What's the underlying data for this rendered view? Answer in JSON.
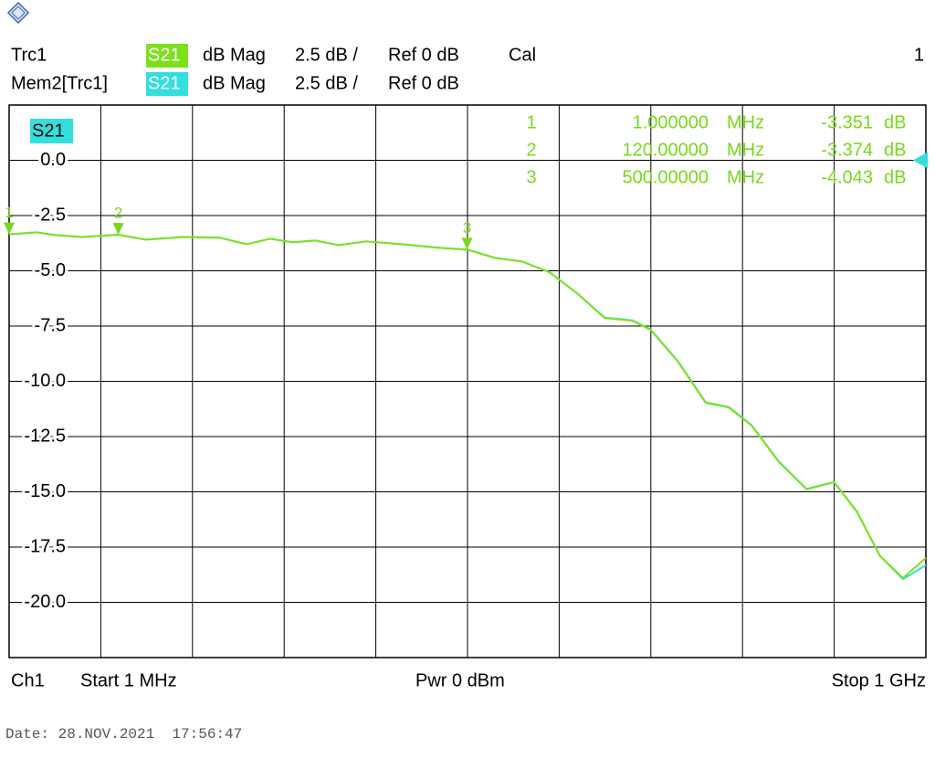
{
  "chart_data": {
    "type": "line",
    "window": "1",
    "trace_label": "S21",
    "ylim": [
      -22.5,
      2.5
    ],
    "yticks": [
      {
        "value": 0,
        "label": "0.0"
      },
      -2.5,
      {
        "value": -5,
        "label": "-5.0"
      },
      -7.5,
      {
        "value": -10,
        "label": "-10.0"
      },
      -12.5,
      {
        "value": -15,
        "label": "-15.0"
      },
      -17.5,
      {
        "value": -20,
        "label": "-20.0"
      }
    ],
    "xlim": [
      1,
      1000
    ],
    "ref_level": 0,
    "x": [
      1,
      31,
      50,
      80,
      120,
      150,
      190,
      230,
      260,
      285,
      310,
      335,
      360,
      390,
      430,
      470,
      500,
      530,
      560,
      590,
      620,
      650,
      680,
      700,
      730,
      760,
      785,
      810,
      840,
      870,
      900,
      925,
      950,
      975,
      1000
    ],
    "series": [
      {
        "name": "Trc1",
        "parameter": "S21",
        "format": "dB Mag",
        "scale": "2.5 dB /",
        "reference": "Ref 0 dB",
        "status": "Cal",
        "color": "#7ee01c",
        "values": [
          -3.35,
          -3.26,
          -3.38,
          -3.47,
          -3.37,
          -3.59,
          -3.47,
          -3.5,
          -3.8,
          -3.55,
          -3.71,
          -3.63,
          -3.84,
          -3.67,
          -3.8,
          -3.96,
          -4.04,
          -4.41,
          -4.58,
          -5.07,
          -6.02,
          -7.14,
          -7.26,
          -7.67,
          -9.12,
          -10.97,
          -11.18,
          -12.0,
          -13.66,
          -14.89,
          -14.56,
          -15.92,
          -17.9,
          -18.9,
          -17.99
        ]
      },
      {
        "name": "Mem2[Trc1]",
        "parameter": "S21",
        "format": "dB Mag",
        "scale": "2.5 dB /",
        "reference": "Ref 0 dB",
        "color": "#33dede",
        "values": [
          -3.35,
          -3.26,
          -3.38,
          -3.47,
          -3.37,
          -3.59,
          -3.47,
          -3.5,
          -3.8,
          -3.55,
          -3.71,
          -3.63,
          -3.84,
          -3.67,
          -3.8,
          -3.96,
          -4.04,
          -4.41,
          -4.58,
          -5.07,
          -6.02,
          -7.12,
          -7.24,
          -7.65,
          -9.1,
          -10.95,
          -11.16,
          -11.98,
          -13.64,
          -14.87,
          -14.56,
          -15.9,
          -17.9,
          -18.95,
          -18.32
        ]
      }
    ],
    "markers": [
      {
        "label": "1",
        "x": 1,
        "frequency": "1.000000",
        "frequency_unit": "MHz",
        "value": -3.351,
        "value_unit": "dB"
      },
      {
        "label": "2",
        "x": 120,
        "frequency": "120.00000",
        "frequency_unit": "MHz",
        "value": -3.374,
        "value_unit": "dB"
      },
      {
        "label": "3",
        "x": 500,
        "frequency": "500.00000",
        "frequency_unit": "MHz",
        "value": -4.043,
        "value_unit": "dB"
      }
    ],
    "channel": "Ch1",
    "start": "Start 1 MHz",
    "power": "Pwr 0 dBm",
    "stop": "Stop 1 GHz",
    "date": "Date: 28.NOV.2021  17:56:47"
  }
}
